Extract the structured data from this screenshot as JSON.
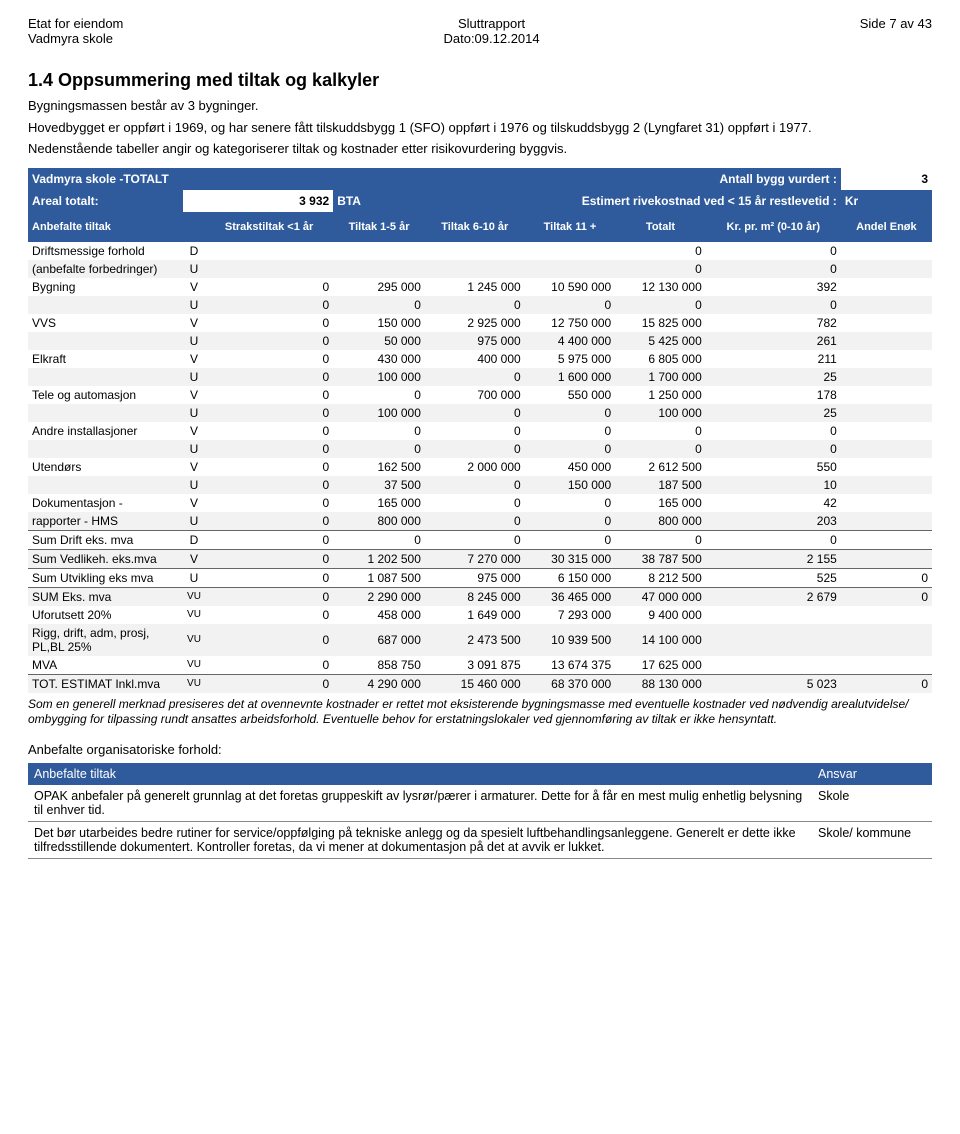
{
  "colors": {
    "blue": "#2f5b9c",
    "alt": "#f2f2f2",
    "text": "#000000",
    "bg": "#ffffff"
  },
  "header": {
    "left1": "Etat for eiendom",
    "left2": "Vadmyra skole",
    "center1": "Sluttrapport",
    "center2": "Dato:09.12.2014",
    "right1": "Side 7 av 43"
  },
  "title": "1.4 Oppsummering med tiltak og kalkyler",
  "intro1": "Bygningsmassen består av 3 bygninger.",
  "intro2": "Hovedbygget er oppført i 1969, og har senere fått tilskuddsbygg 1 (SFO) oppført i 1976 og tilskuddsbygg 2 (Lyngfaret 31) oppført i 1977.",
  "intro3": "Nedenstående tabeller angir og kategoriserer tiltak og kostnader etter risikovurdering byggvis.",
  "tbl": {
    "hdr1": {
      "title": "Vadmyra skole -TOTALT",
      "right_label": "Antall bygg vurdert :",
      "right_val": "3"
    },
    "hdr2": {
      "l1": "Areal totalt:",
      "v1": "3 932",
      "l2": "BTA",
      "l3": "Estimert rivekostnad ved < 15 år restlevetid :",
      "v3": "Kr"
    },
    "hdr3": [
      "Anbefalte tiltak",
      "",
      "Strakstiltak <1 år",
      "Tiltak 1-5 år",
      "Tiltak 6-10 år",
      "Tiltak 11 +",
      "Totalt",
      "Kr. pr. m² (0-10 år)",
      "Andel Enøk"
    ],
    "rows": [
      {
        "cat": "Driftsmessige forhold",
        "tag": "D",
        "c": [
          "",
          "",
          "",
          "",
          "0",
          "0",
          ""
        ],
        "alt": false
      },
      {
        "cat": "(anbefalte forbedringer)",
        "tag": "U",
        "c": [
          "",
          "",
          "",
          "",
          "0",
          "0",
          ""
        ],
        "alt": true
      },
      {
        "cat": "Bygning",
        "tag": "V",
        "c": [
          "0",
          "295 000",
          "1 245 000",
          "10 590 000",
          "12 130 000",
          "392",
          ""
        ],
        "alt": false
      },
      {
        "cat": "",
        "tag": "U",
        "c": [
          "0",
          "0",
          "0",
          "0",
          "0",
          "0",
          ""
        ],
        "alt": true
      },
      {
        "cat": "VVS",
        "tag": "V",
        "c": [
          "0",
          "150 000",
          "2 925 000",
          "12 750 000",
          "15 825 000",
          "782",
          ""
        ],
        "alt": false
      },
      {
        "cat": "",
        "tag": "U",
        "c": [
          "0",
          "50 000",
          "975 000",
          "4 400 000",
          "5 425 000",
          "261",
          ""
        ],
        "alt": true
      },
      {
        "cat": "Elkraft",
        "tag": "V",
        "c": [
          "0",
          "430 000",
          "400 000",
          "5 975 000",
          "6 805 000",
          "211",
          ""
        ],
        "alt": false
      },
      {
        "cat": "",
        "tag": "U",
        "c": [
          "0",
          "100 000",
          "0",
          "1 600 000",
          "1 700 000",
          "25",
          ""
        ],
        "alt": true
      },
      {
        "cat": "Tele og automasjon",
        "tag": "V",
        "c": [
          "0",
          "0",
          "700 000",
          "550 000",
          "1 250 000",
          "178",
          ""
        ],
        "alt": false
      },
      {
        "cat": "",
        "tag": "U",
        "c": [
          "0",
          "100 000",
          "0",
          "0",
          "100 000",
          "25",
          ""
        ],
        "alt": true
      },
      {
        "cat": "Andre installasjoner",
        "tag": "V",
        "c": [
          "0",
          "0",
          "0",
          "0",
          "0",
          "0",
          ""
        ],
        "alt": false
      },
      {
        "cat": "",
        "tag": "U",
        "c": [
          "0",
          "0",
          "0",
          "0",
          "0",
          "0",
          ""
        ],
        "alt": true
      },
      {
        "cat": "Utendørs",
        "tag": "V",
        "c": [
          "0",
          "162 500",
          "2 000 000",
          "450 000",
          "2 612 500",
          "550",
          ""
        ],
        "alt": false
      },
      {
        "cat": "",
        "tag": "U",
        "c": [
          "0",
          "37 500",
          "0",
          "150 000",
          "187 500",
          "10",
          ""
        ],
        "alt": true
      },
      {
        "cat": "Dokumentasjon -",
        "tag": "V",
        "c": [
          "0",
          "165 000",
          "0",
          "0",
          "165 000",
          "42",
          ""
        ],
        "alt": false
      },
      {
        "cat": "rapporter - HMS",
        "tag": "U",
        "c": [
          "0",
          "800 000",
          "0",
          "0",
          "800 000",
          "203",
          ""
        ],
        "alt": true
      },
      {
        "cat": "Sum Drift eks. mva",
        "tag": "D",
        "c": [
          "0",
          "0",
          "0",
          "0",
          "0",
          "0",
          ""
        ],
        "alt": false,
        "sum": true
      },
      {
        "cat": "Sum Vedlikeh. eks.mva",
        "tag": "V",
        "c": [
          "0",
          "1 202 500",
          "7 270 000",
          "30 315 000",
          "38 787 500",
          "2 155",
          ""
        ],
        "alt": true,
        "sum": true
      },
      {
        "cat": "Sum Utvikling eks mva",
        "tag": "U",
        "c": [
          "0",
          "1 087 500",
          "975 000",
          "6 150 000",
          "8 212 500",
          "525",
          "0"
        ],
        "alt": false,
        "sum": true
      },
      {
        "cat": "SUM Eks. mva",
        "tag": "VU",
        "c": [
          "0",
          "2 290 000",
          "8 245 000",
          "36 465 000",
          "47 000 000",
          "2 679",
          "0"
        ],
        "alt": true,
        "sum": true
      },
      {
        "cat": "Uforutsett 20%",
        "tag": "VU",
        "c": [
          "0",
          "458 000",
          "1 649 000",
          "7 293 000",
          "9 400 000",
          "",
          ""
        ],
        "alt": false
      },
      {
        "cat": "Rigg, drift, adm, prosj, PL,BL 25%",
        "tag": "VU",
        "c": [
          "0",
          "687 000",
          "2 473 500",
          "10 939 500",
          "14 100 000",
          "",
          ""
        ],
        "alt": true
      },
      {
        "cat": "MVA",
        "tag": "VU",
        "c": [
          "0",
          "858 750",
          "3 091 875",
          "13 674 375",
          "17 625 000",
          "",
          ""
        ],
        "alt": false
      },
      {
        "cat": "TOT. ESTIMAT Inkl.mva",
        "tag": "VU",
        "c": [
          "0",
          "4 290 000",
          "15 460 000",
          "68 370 000",
          "88 130 000",
          "5 023",
          "0"
        ],
        "alt": true,
        "sum": true
      }
    ]
  },
  "footnote": "Som en generell merknad presiseres det at ovennevnte kostnader er rettet mot eksisterende bygningsmasse med eventuelle kostnader ved nødvendig arealutvidelse/ ombygging for tilpassing rundt ansattes arbeidsforhold. Eventuelle behov for erstatningslokaler ved gjennomføring av tiltak er ikke hensyntatt.",
  "org": {
    "heading": "Anbefalte organisatoriske forhold:",
    "head": [
      "Anbefalte tiltak",
      "Ansvar"
    ],
    "rows": [
      {
        "t": "OPAK anbefaler på generelt grunnlag at det foretas gruppeskift av lysrør/pærer i armaturer. Dette for å får en mest mulig enhetlig belysning til enhver tid.",
        "a": "Skole"
      },
      {
        "t": "Det bør utarbeides bedre rutiner for service/oppfølging på tekniske anlegg og da spesielt luftbehandlingsanleggene. Generelt er dette ikke tilfredsstillende dokumentert. Kontroller foretas, da vi mener at dokumentasjon på det at avvik er lukket.",
        "a": "Skole/ kommune"
      }
    ]
  }
}
